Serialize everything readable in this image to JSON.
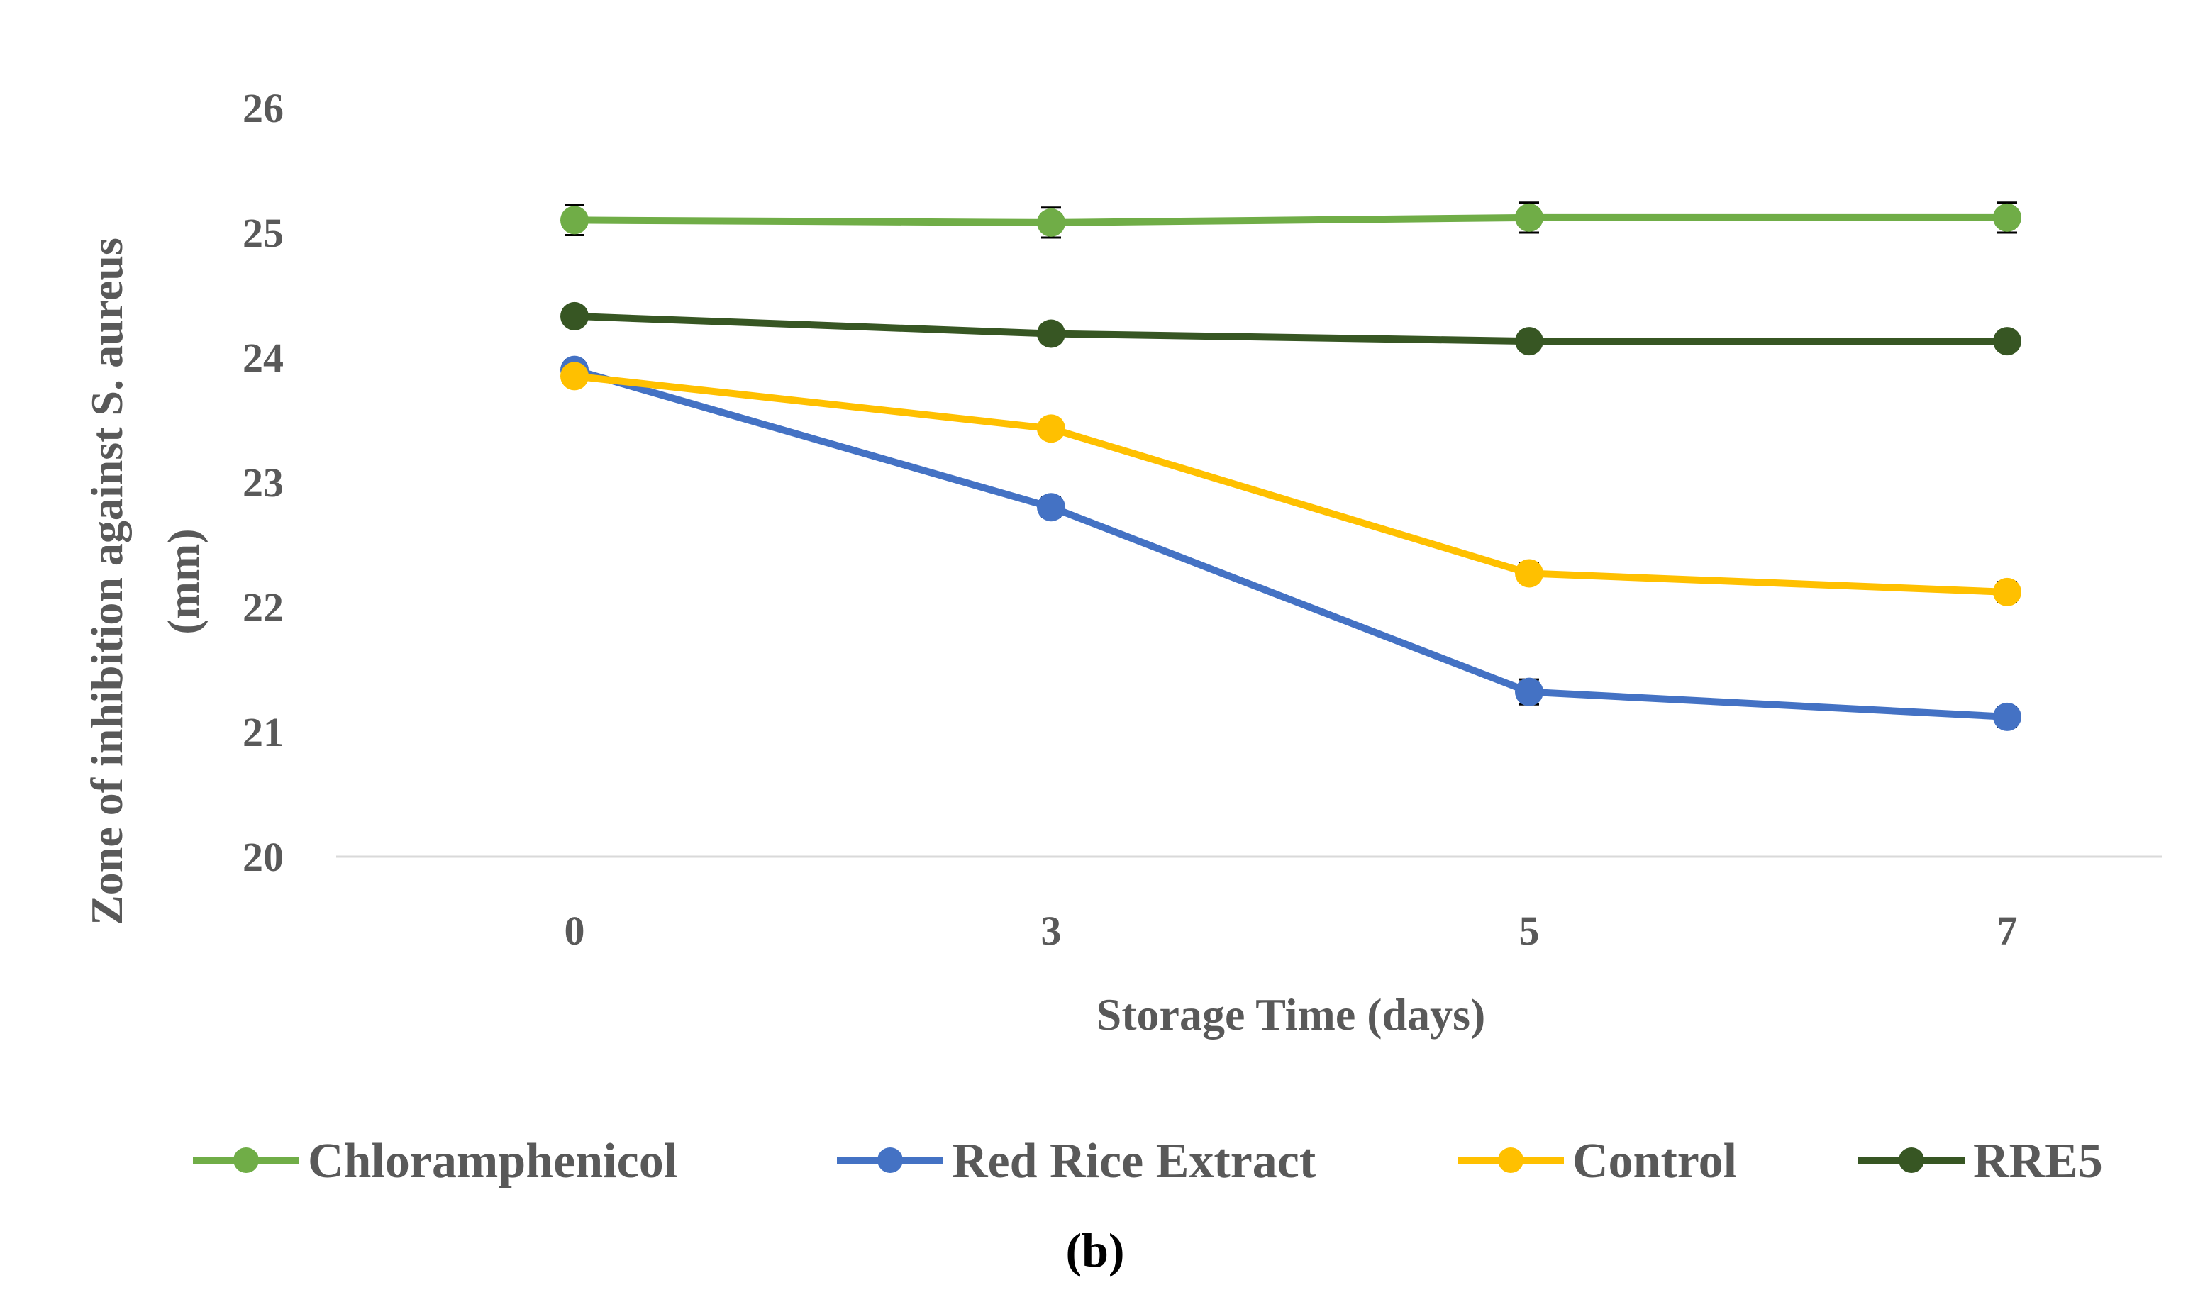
{
  "chart_data": {
    "type": "line",
    "title": "",
    "xlabel": "Storage Time (days)",
    "ylabel_line1": "Zone of inhibition against S. aureus",
    "ylabel_line2": "(mm)",
    "categories": [
      "0",
      "3",
      "5",
      "7"
    ],
    "ylim": [
      20,
      26
    ],
    "yticks": [
      20,
      21,
      22,
      23,
      24,
      25,
      26
    ],
    "grid": false,
    "legend_position": "bottom",
    "caption": "(b)",
    "series": [
      {
        "name": "Chloramphenicol",
        "color": "#70AD47",
        "values": [
          25.1,
          25.08,
          25.12,
          25.12
        ],
        "errors": [
          0.12,
          0.12,
          0.12,
          0.12
        ]
      },
      {
        "name": "Red Rice Extract",
        "color": "#4472C4",
        "values": [
          23.9,
          22.8,
          21.32,
          21.12
        ],
        "errors": [
          0.08,
          0.08,
          0.1,
          0.08
        ]
      },
      {
        "name": "Control",
        "color": "#FFC000",
        "values": [
          23.85,
          23.43,
          22.27,
          22.12
        ],
        "errors": [
          0.06,
          0.06,
          0.08,
          0.08
        ]
      },
      {
        "name": "RRE5",
        "color": "#375623",
        "values": [
          24.33,
          24.19,
          24.13,
          24.13
        ],
        "errors": [
          0.03,
          0.03,
          0.03,
          0.03
        ]
      }
    ]
  }
}
